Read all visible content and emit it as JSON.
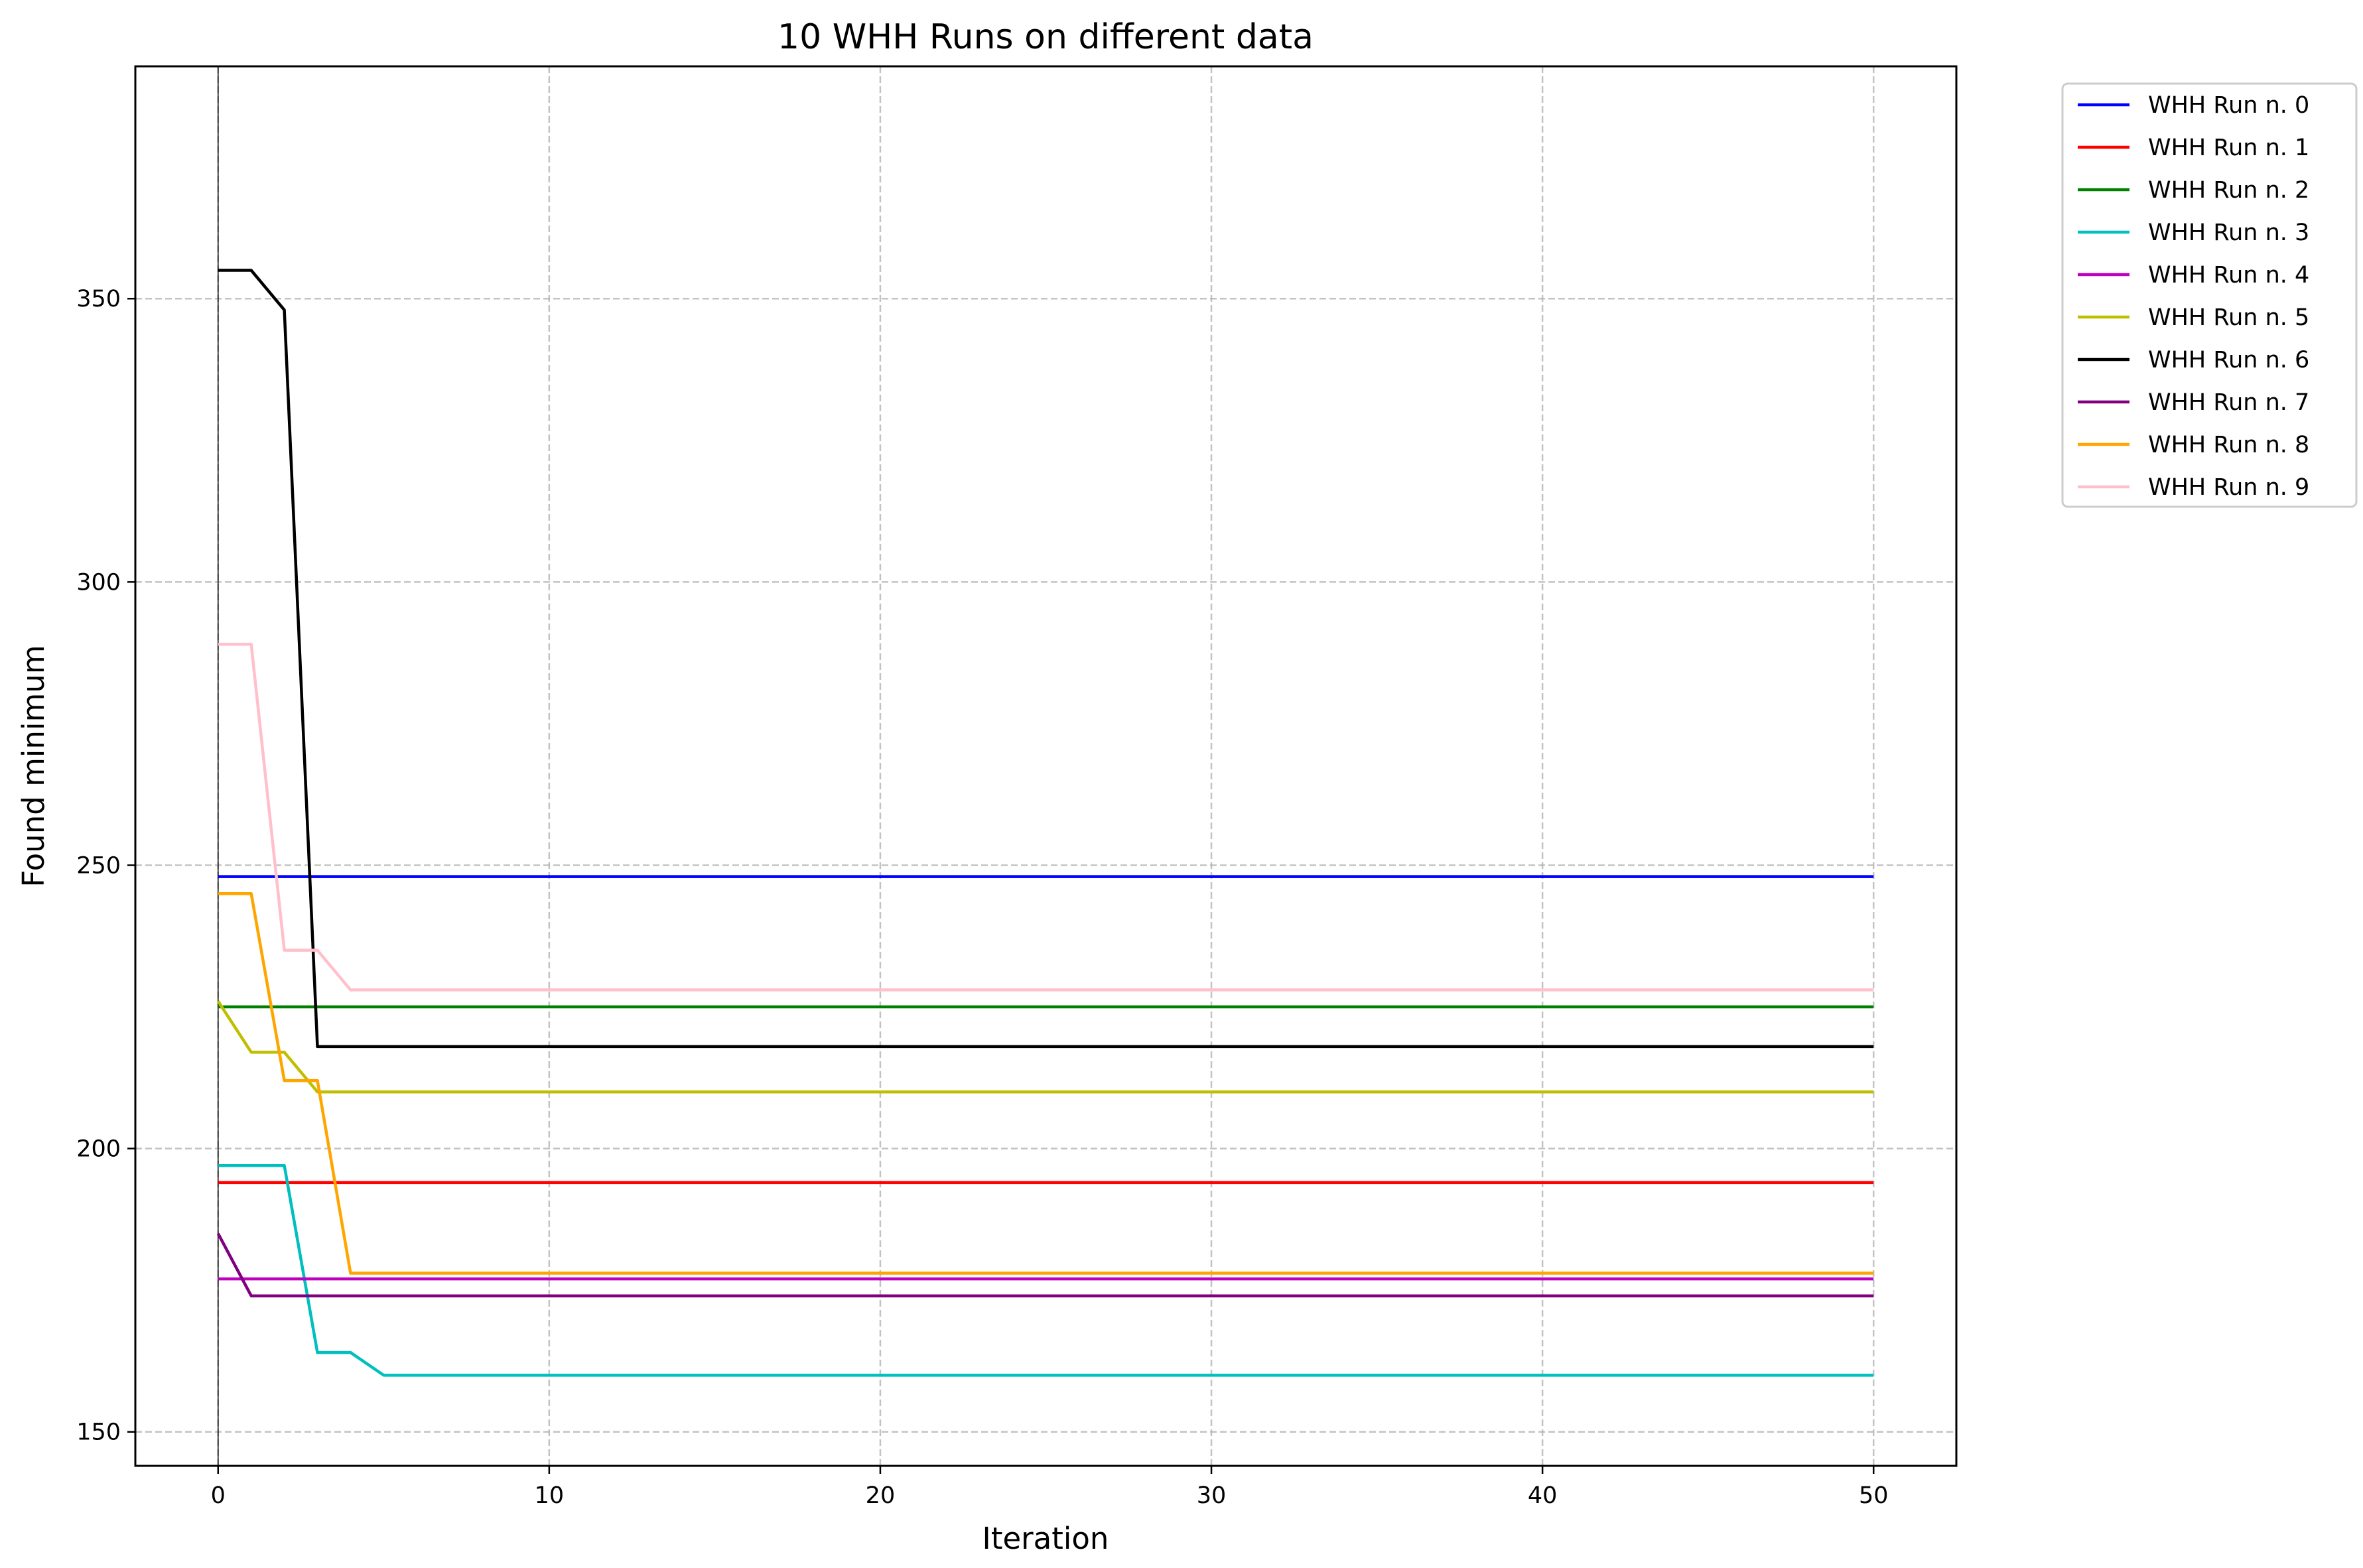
{
  "chart_data": {
    "type": "line",
    "title": "10 WHH Runs on different data",
    "xlabel": "Iteration",
    "ylabel": "Found minimum",
    "xlim": [
      -2.5,
      52.5
    ],
    "ylim": [
      144,
      391
    ],
    "x_ticks": [
      0,
      10,
      20,
      30,
      40,
      50
    ],
    "y_ticks": [
      150,
      200,
      250,
      300,
      350
    ],
    "grid": true,
    "legend_position": "outside upper right",
    "x": [
      0,
      1,
      2,
      3,
      4,
      5,
      6,
      7,
      8,
      9,
      10,
      11,
      12,
      13,
      14,
      15,
      16,
      17,
      18,
      19,
      20,
      21,
      22,
      23,
      24,
      25,
      26,
      27,
      28,
      29,
      30,
      31,
      32,
      33,
      34,
      35,
      36,
      37,
      38,
      39,
      40,
      41,
      42,
      43,
      44,
      45,
      46,
      47,
      48,
      49,
      50
    ],
    "series": [
      {
        "name": "WHH Run n. 0",
        "color": "#0000ff",
        "values": [
          248,
          248,
          248,
          248,
          248,
          248,
          248,
          248,
          248,
          248,
          248,
          248,
          248,
          248,
          248,
          248,
          248,
          248,
          248,
          248,
          248,
          248,
          248,
          248,
          248,
          248,
          248,
          248,
          248,
          248,
          248,
          248,
          248,
          248,
          248,
          248,
          248,
          248,
          248,
          248,
          248,
          248,
          248,
          248,
          248,
          248,
          248,
          248,
          248,
          248,
          248
        ]
      },
      {
        "name": "WHH Run n. 1",
        "color": "#ff0000",
        "values": [
          194,
          194,
          194,
          194,
          194,
          194,
          194,
          194,
          194,
          194,
          194,
          194,
          194,
          194,
          194,
          194,
          194,
          194,
          194,
          194,
          194,
          194,
          194,
          194,
          194,
          194,
          194,
          194,
          194,
          194,
          194,
          194,
          194,
          194,
          194,
          194,
          194,
          194,
          194,
          194,
          194,
          194,
          194,
          194,
          194,
          194,
          194,
          194,
          194,
          194,
          194
        ]
      },
      {
        "name": "WHH Run n. 2",
        "color": "#008000",
        "values": [
          225,
          225,
          225,
          225,
          225,
          225,
          225,
          225,
          225,
          225,
          225,
          225,
          225,
          225,
          225,
          225,
          225,
          225,
          225,
          225,
          225,
          225,
          225,
          225,
          225,
          225,
          225,
          225,
          225,
          225,
          225,
          225,
          225,
          225,
          225,
          225,
          225,
          225,
          225,
          225,
          225,
          225,
          225,
          225,
          225,
          225,
          225,
          225,
          225,
          225,
          225
        ]
      },
      {
        "name": "WHH Run n. 3",
        "color": "#00bfbf",
        "values": [
          197,
          197,
          197,
          164,
          164,
          160,
          160,
          160,
          160,
          160,
          160,
          160,
          160,
          160,
          160,
          160,
          160,
          160,
          160,
          160,
          160,
          160,
          160,
          160,
          160,
          160,
          160,
          160,
          160,
          160,
          160,
          160,
          160,
          160,
          160,
          160,
          160,
          160,
          160,
          160,
          160,
          160,
          160,
          160,
          160,
          160,
          160,
          160,
          160,
          160,
          160
        ]
      },
      {
        "name": "WHH Run n. 4",
        "color": "#bf00bf",
        "values": [
          177,
          177,
          177,
          177,
          177,
          177,
          177,
          177,
          177,
          177,
          177,
          177,
          177,
          177,
          177,
          177,
          177,
          177,
          177,
          177,
          177,
          177,
          177,
          177,
          177,
          177,
          177,
          177,
          177,
          177,
          177,
          177,
          177,
          177,
          177,
          177,
          177,
          177,
          177,
          177,
          177,
          177,
          177,
          177,
          177,
          177,
          177,
          177,
          177,
          177,
          177
        ]
      },
      {
        "name": "WHH Run n. 5",
        "color": "#bfbf00",
        "values": [
          226,
          217,
          217,
          210,
          210,
          210,
          210,
          210,
          210,
          210,
          210,
          210,
          210,
          210,
          210,
          210,
          210,
          210,
          210,
          210,
          210,
          210,
          210,
          210,
          210,
          210,
          210,
          210,
          210,
          210,
          210,
          210,
          210,
          210,
          210,
          210,
          210,
          210,
          210,
          210,
          210,
          210,
          210,
          210,
          210,
          210,
          210,
          210,
          210,
          210,
          210
        ]
      },
      {
        "name": "WHH Run n. 6",
        "color": "#000000",
        "values": [
          355,
          355,
          348,
          218,
          218,
          218,
          218,
          218,
          218,
          218,
          218,
          218,
          218,
          218,
          218,
          218,
          218,
          218,
          218,
          218,
          218,
          218,
          218,
          218,
          218,
          218,
          218,
          218,
          218,
          218,
          218,
          218,
          218,
          218,
          218,
          218,
          218,
          218,
          218,
          218,
          218,
          218,
          218,
          218,
          218,
          218,
          218,
          218,
          218,
          218,
          218
        ]
      },
      {
        "name": "WHH Run n. 7",
        "color": "#800080",
        "values": [
          185,
          174,
          174,
          174,
          174,
          174,
          174,
          174,
          174,
          174,
          174,
          174,
          174,
          174,
          174,
          174,
          174,
          174,
          174,
          174,
          174,
          174,
          174,
          174,
          174,
          174,
          174,
          174,
          174,
          174,
          174,
          174,
          174,
          174,
          174,
          174,
          174,
          174,
          174,
          174,
          174,
          174,
          174,
          174,
          174,
          174,
          174,
          174,
          174,
          174,
          174
        ]
      },
      {
        "name": "WHH Run n. 8",
        "color": "#ffa500",
        "values": [
          245,
          245,
          212,
          212,
          178,
          178,
          178,
          178,
          178,
          178,
          178,
          178,
          178,
          178,
          178,
          178,
          178,
          178,
          178,
          178,
          178,
          178,
          178,
          178,
          178,
          178,
          178,
          178,
          178,
          178,
          178,
          178,
          178,
          178,
          178,
          178,
          178,
          178,
          178,
          178,
          178,
          178,
          178,
          178,
          178,
          178,
          178,
          178,
          178,
          178,
          178
        ]
      },
      {
        "name": "WHH Run n. 9",
        "color": "#ffc0cb",
        "values": [
          289,
          289,
          235,
          235,
          228,
          228,
          228,
          228,
          228,
          228,
          228,
          228,
          228,
          228,
          228,
          228,
          228,
          228,
          228,
          228,
          228,
          228,
          228,
          228,
          228,
          228,
          228,
          228,
          228,
          228,
          228,
          228,
          228,
          228,
          228,
          228,
          228,
          228,
          228,
          228,
          228,
          228,
          228,
          228,
          228,
          228,
          228,
          228,
          228,
          228,
          228
        ]
      }
    ]
  }
}
